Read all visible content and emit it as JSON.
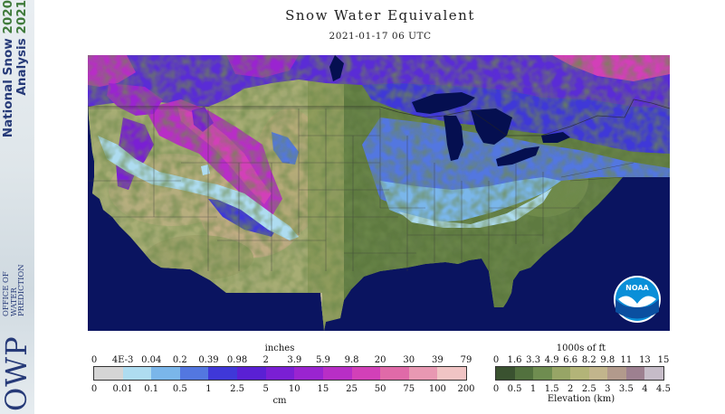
{
  "header": {
    "title": "Snow Water Equivalent",
    "datetime": "2021-01-17 06 UTC"
  },
  "branding": {
    "nsa_line1": "National Snow",
    "nsa_line2": "Analysis",
    "year_a": "2020",
    "year_b": "2021",
    "office_lines": [
      "OFFICE OF",
      "WATER",
      "PREDICTION"
    ],
    "owp_logo_text": "OWP",
    "noaa_logo_text": "NOAA"
  },
  "colors": {
    "ocean": "#0a1460",
    "lakes": "#050f50",
    "outside_domain": "#c8bf9d",
    "grid_lines": "#3a3a3a"
  },
  "swe_legend": {
    "top_unit": "inches",
    "top_ticks": [
      "0",
      "4E-3",
      "0.04",
      "0.2",
      "0.39",
      "0.98",
      "2",
      "3.9",
      "5.9",
      "9.8",
      "20",
      "30",
      "39",
      "79"
    ],
    "bottom_unit": "cm",
    "bottom_ticks": [
      "0",
      "0.01",
      "0.1",
      "0.5",
      "1",
      "2.5",
      "5",
      "10",
      "15",
      "25",
      "50",
      "75",
      "100",
      "200"
    ],
    "colors": [
      "#d5d5d5",
      "#aedcf0",
      "#7ab6ea",
      "#5377e0",
      "#3f38d8",
      "#5a20d4",
      "#7a1fd4",
      "#9a24d0",
      "#b82ec6",
      "#d240b8",
      "#e06aa8",
      "#e898b2",
      "#f0c4c4"
    ]
  },
  "elevation_legend": {
    "top_unit": "1000s of ft",
    "top_ticks": [
      "0",
      "1.6",
      "3.3",
      "4.9",
      "6.6",
      "8.2",
      "9.8",
      "11",
      "13",
      "15"
    ],
    "bottom_label": "Elevation (km)",
    "bottom_ticks": [
      "0",
      "0.5",
      "1",
      "1.5",
      "2",
      "2.5",
      "3",
      "3.5",
      "4",
      "4.5"
    ],
    "colors": [
      "#3a5230",
      "#52713e",
      "#6f8d50",
      "#97a566",
      "#b3b478",
      "#c2b58c",
      "#b29a8c",
      "#9d8090",
      "#c6bcc8"
    ]
  }
}
